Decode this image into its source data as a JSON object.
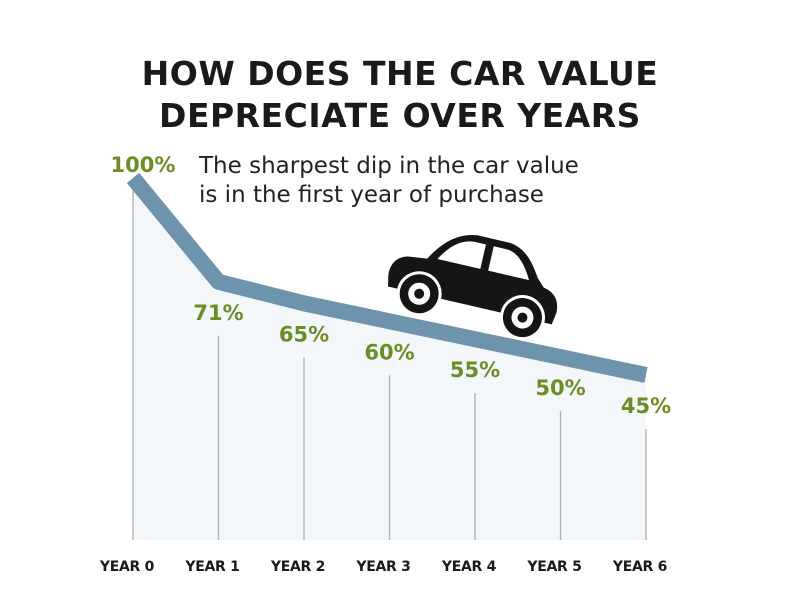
{
  "title_lines": [
    "HOW DOES THE CAR VALUE",
    "DEPRECIATE OVER YEARS"
  ],
  "annotation_lines": [
    "The sharpest dip in the car value",
    "is in the first year of purchase"
  ],
  "colors": {
    "line": "#6d93ad",
    "value_label": "#6b8e23",
    "area_fill": "#f3f7fa",
    "drop_lines": "#b0b0b0",
    "text": "#1a1a1a",
    "car": "#151515"
  },
  "icon": "car-icon",
  "chart_data": {
    "type": "area",
    "title": "HOW DOES THE CAR VALUE DEPRECIATE OVER YEARS",
    "categories": [
      "YEAR 0",
      "YEAR 1",
      "YEAR 2",
      "YEAR 3",
      "YEAR 4",
      "YEAR 5",
      "YEAR 6"
    ],
    "series": [
      {
        "values": [
          100,
          71,
          65,
          60,
          55,
          50,
          45
        ],
        "labels": [
          "100%",
          "71%",
          "65%",
          "60%",
          "55%",
          "50%",
          "45%"
        ]
      }
    ],
    "ylim": [
      0,
      100
    ],
    "grid": false,
    "legend": "none"
  }
}
